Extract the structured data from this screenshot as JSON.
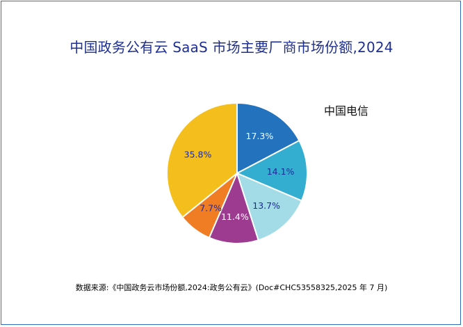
{
  "chart_data": {
    "type": "pie",
    "title": "中国政务公有云 SaaS 市场主要厂商市场份额,2024",
    "slices": [
      {
        "label": "17.3%",
        "value": 17.3,
        "color": "#2272be",
        "label_color": "#ffffff"
      },
      {
        "label": "14.1%",
        "value": 14.1,
        "color": "#33aed0",
        "label_color": "#1c2a9a"
      },
      {
        "label": "13.7%",
        "value": 13.7,
        "color": "#a3dbe6",
        "label_color": "#1c2a9a"
      },
      {
        "label": "11.4%",
        "value": 11.4,
        "color": "#9c3b8f",
        "label_color": "#ffffff"
      },
      {
        "label": "7.7%",
        "value": 7.7,
        "color": "#f07c24",
        "label_color": "#1c2a9a"
      },
      {
        "label": "35.8%",
        "value": 35.8,
        "color": "#f4bf1d",
        "label_color": "#1c2a9a"
      }
    ],
    "legend_entries": [
      "中国电信"
    ],
    "start_angle_deg": 0,
    "direction": "clockwise"
  },
  "source": "数据来源:《中国政务云市场份额,2024:政务公有云》(Doc#CHC53558325,2025 年 7 月)"
}
